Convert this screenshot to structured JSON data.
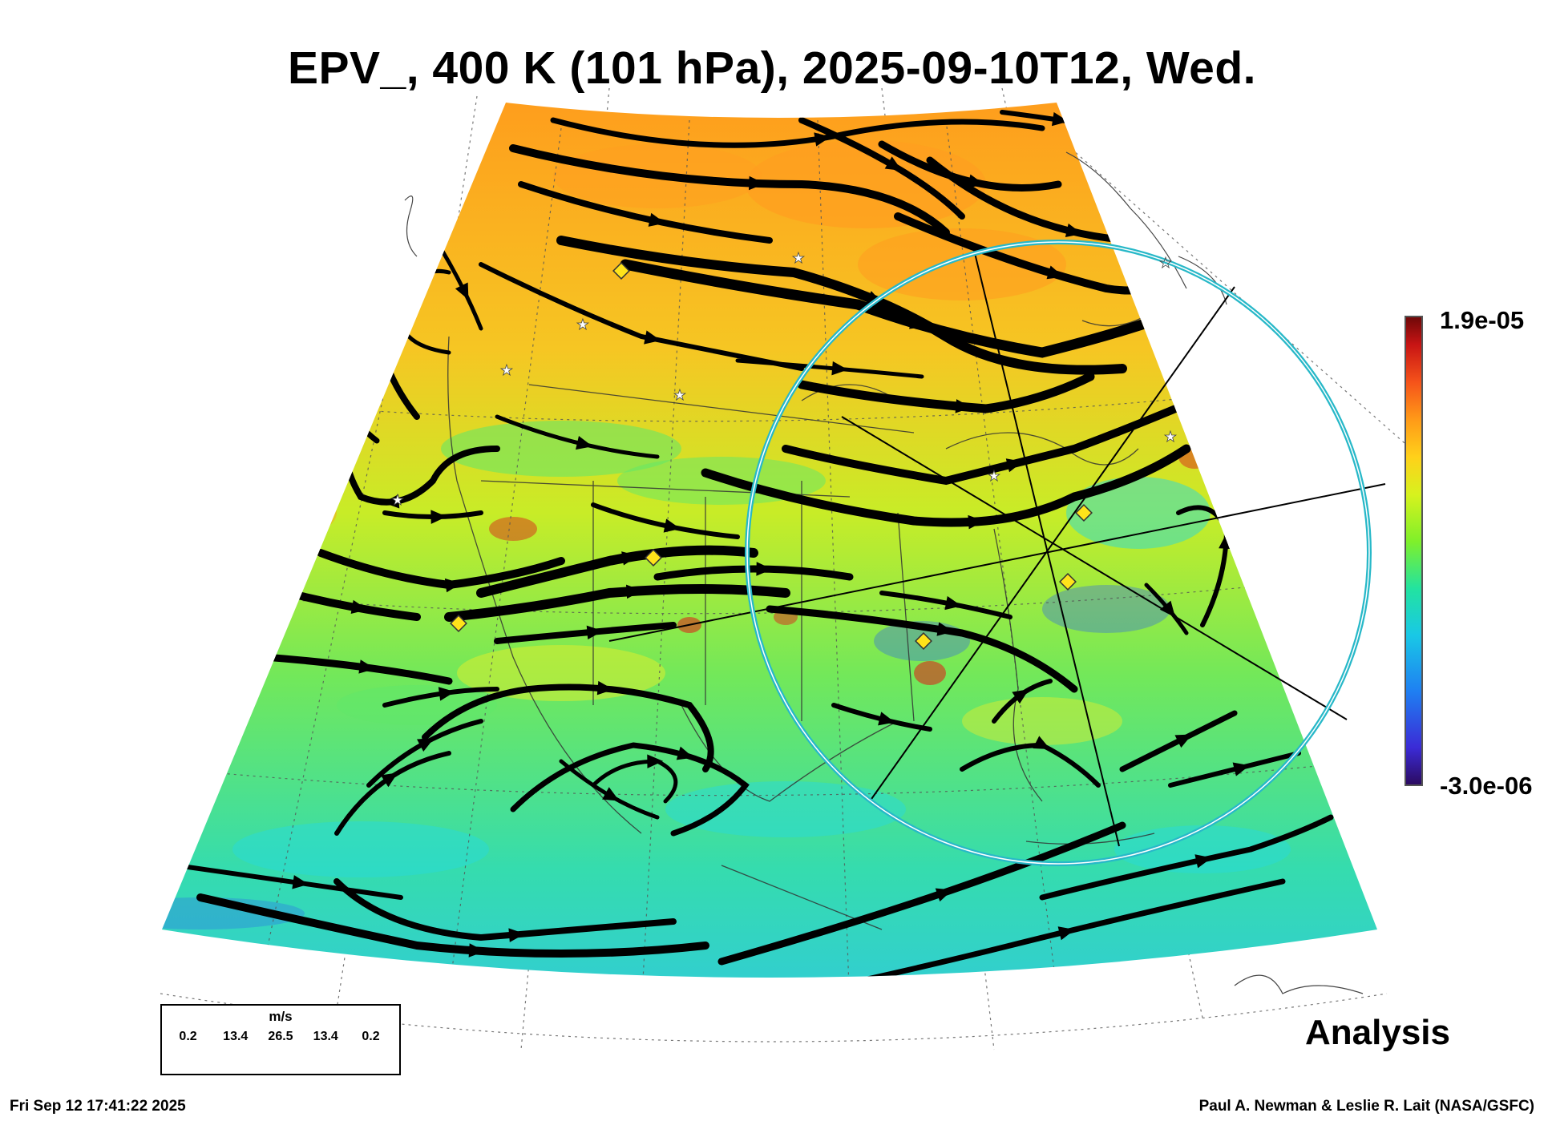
{
  "title": "EPV_, 400 K (101 hPa), 2025-09-10T12, Wed.",
  "colorbar": {
    "max_label": "1.9e-05",
    "min_label": "-3.0e-06",
    "colors": [
      "#2b0a5e",
      "#3b2bd6",
      "#1f7ff2",
      "#19c8e6",
      "#22e3a0",
      "#7ff02a",
      "#d7f21e",
      "#ffd11a",
      "#ff9a18",
      "#f5531a",
      "#c81414",
      "#6d0808"
    ]
  },
  "wind_legend": {
    "unit": "m/s",
    "labels": [
      "0.2",
      "13.4",
      "26.5",
      "13.4",
      "0.2"
    ]
  },
  "label_analysis": "Analysis",
  "footer": {
    "timestamp": "Fri Sep 12 17:41:22 2025",
    "credit": "Paul A. Newman & Leslie R. Lait (NASA/GSFC)"
  },
  "map": {
    "field_colors": {
      "orange": "#ff9e1f",
      "yellow": "#e6ee2a",
      "green": "#5fe86a",
      "cyan": "#28d9d9",
      "blue": "#2b62ee",
      "red": "#d82c1a"
    },
    "ring_color": "#27b8c8",
    "markers": {
      "diamond_color": "#ffe31a",
      "star_color": "#ffffff"
    }
  }
}
